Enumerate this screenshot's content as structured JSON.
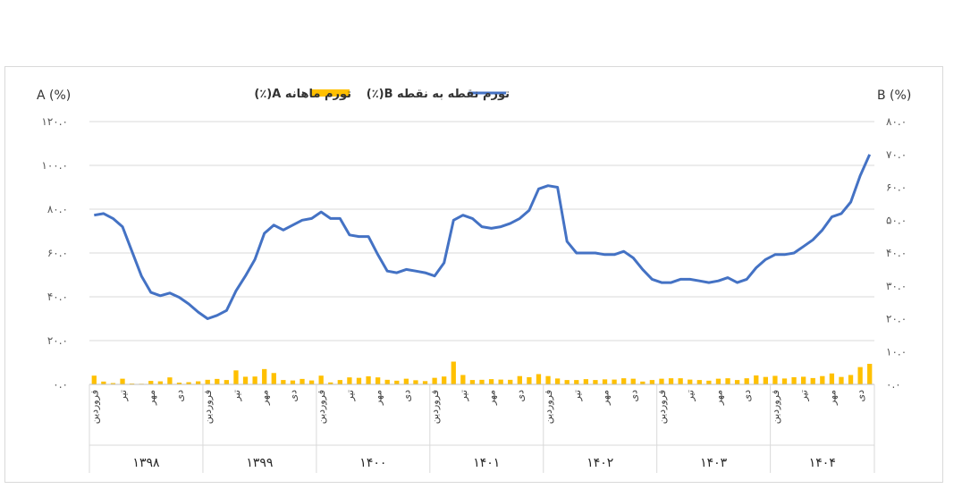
{
  "chart_data": {
    "type": "bar+line",
    "left_axis": {
      "title": "A (%)",
      "ylim": [
        0,
        120
      ],
      "ticks": [
        "۰.۰",
        "۲۰.۰",
        "۴۰.۰",
        "۶۰.۰",
        "۸۰.۰",
        "۱۰۰.۰",
        "۱۲۰.۰"
      ]
    },
    "right_axis": {
      "title": "B (%)",
      "ylim": [
        0,
        80
      ],
      "ticks": [
        "۰.۰",
        "۱۰.۰",
        "۲۰.۰",
        "۳۰.۰",
        "۴۰.۰",
        "۵۰.۰",
        "۶۰.۰",
        "۷۰.۰",
        "۸۰.۰"
      ]
    },
    "grid": true,
    "legend_position": "top",
    "series": [
      {
        "name": "تورم ماهانه A(٪)",
        "type": "bar",
        "axis": "left",
        "color": "#FFC000",
        "values": [
          4.0,
          1.3,
          0.6,
          2.6,
          0.4,
          0.3,
          1.6,
          1.4,
          3.2,
          0.8,
          1.0,
          1.4,
          2.1,
          2.5,
          2.0,
          6.4,
          3.5,
          3.6,
          7.0,
          5.2,
          2.0,
          1.8,
          2.5,
          1.8,
          4.0,
          0.9,
          2.0,
          3.2,
          3.0,
          3.7,
          3.2,
          2.1,
          1.7,
          2.6,
          1.9,
          1.5,
          3.0,
          3.6,
          10.4,
          4.3,
          2.0,
          2.1,
          2.4,
          2.2,
          2.1,
          3.8,
          3.3,
          4.7,
          3.8,
          2.7,
          2.0,
          2.0,
          2.4,
          2.0,
          2.3,
          2.2,
          2.8,
          2.6,
          1.3,
          2.0,
          2.6,
          2.8,
          2.8,
          2.2,
          2.0,
          1.7,
          2.6,
          2.8,
          2.0,
          2.8,
          4.1,
          3.4,
          3.9,
          2.7,
          3.3,
          3.5,
          2.9,
          3.8,
          5.0,
          3.4,
          4.3,
          7.9,
          9.4
        ]
      },
      {
        "name": "تورم نقطه به نقطه B(٪)",
        "type": "line",
        "axis": "right",
        "color": "#4472C4",
        "values": [
          51.5,
          52.0,
          50.5,
          48.0,
          40.5,
          33.0,
          28.0,
          27.0,
          27.8,
          26.5,
          24.5,
          22.0,
          20.0,
          21.0,
          22.5,
          28.5,
          33.0,
          38.0,
          46.0,
          48.5,
          47.0,
          48.5,
          50.0,
          50.5,
          52.5,
          50.5,
          50.5,
          45.5,
          45.0,
          45.0,
          39.5,
          34.5,
          34.0,
          35.0,
          34.5,
          34.0,
          33.0,
          37.0,
          50.0,
          51.5,
          50.5,
          48.0,
          47.5,
          48.0,
          49.0,
          50.5,
          53.0,
          59.5,
          60.5,
          60.0,
          43.5,
          40.0,
          40.0,
          40.0,
          39.5,
          39.5,
          40.5,
          38.5,
          35.0,
          32.0,
          31.0,
          31.0,
          32.0,
          32.0,
          31.5,
          31.0,
          31.5,
          32.5,
          31.0,
          32.0,
          35.5,
          38.0,
          39.5,
          39.5,
          40.0,
          42.0,
          44.0,
          47.0,
          51.0,
          52.0,
          55.5,
          63.5,
          70.0
        ]
      }
    ],
    "x_month_labels": [
      "فروردین",
      "تیر",
      "مهر",
      "دی"
    ],
    "years": [
      "۱۳۹۸",
      "۱۳۹۹",
      "۱۴۰۰",
      "۱۴۰۱",
      "۱۴۰۲",
      "۱۴۰۳",
      "۱۴۰۴"
    ]
  }
}
